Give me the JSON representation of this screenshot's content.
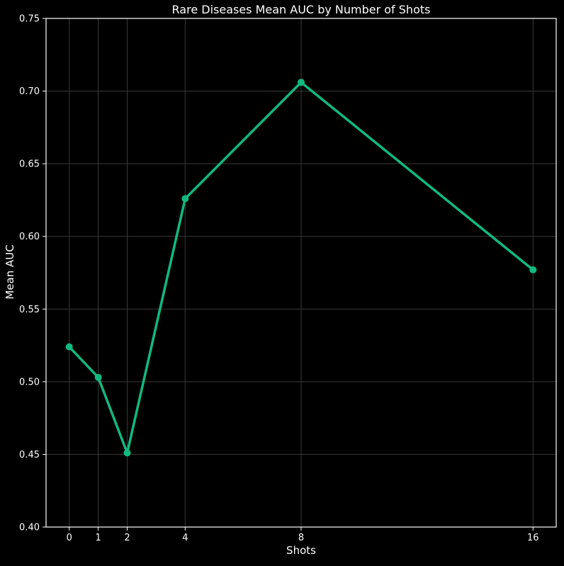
{
  "chart_data": {
    "type": "line",
    "title": "Rare Diseases Mean AUC by Number of Shots",
    "xlabel": "Shots",
    "ylabel": "Mean AUC",
    "x": [
      0,
      1,
      2,
      4,
      8,
      16
    ],
    "series": [
      {
        "values": [
          0.524,
          0.503,
          0.451,
          0.626,
          0.706,
          0.577
        ]
      }
    ],
    "xticks": [
      "0",
      "1",
      "2",
      "4",
      "8",
      "16"
    ],
    "yticks": [
      "0.40",
      "0.45",
      "0.50",
      "0.55",
      "0.60",
      "0.65",
      "0.70",
      "0.75"
    ],
    "ylim": [
      0.4,
      0.75
    ],
    "xlim": [
      -0.8,
      16.8
    ],
    "grid": true,
    "colors": {
      "background": "#000000",
      "line": "#10b981",
      "grid": "#3a3a3a",
      "axis": "#ffffff",
      "text": "#ffffff"
    }
  }
}
